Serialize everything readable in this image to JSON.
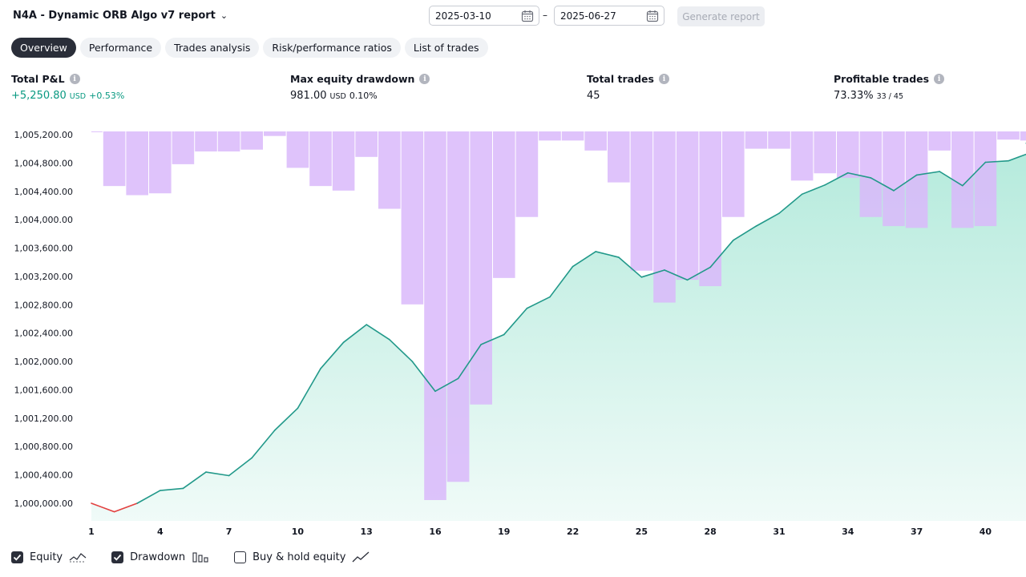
{
  "header": {
    "title": "N4A - Dynamic ORB Algo v7 report",
    "date_from": "2025-03-10",
    "date_to": "2025-06-27",
    "date_separator": "–",
    "generate_label": "Generate report"
  },
  "tabs": [
    {
      "label": "Overview",
      "active": true
    },
    {
      "label": "Performance"
    },
    {
      "label": "Trades analysis"
    },
    {
      "label": "Risk/performance ratios"
    },
    {
      "label": "List of trades"
    }
  ],
  "stats": {
    "pnl": {
      "label": "Total P&L",
      "value": "+5,250.80",
      "unit": "USD",
      "pct": "+0.53%"
    },
    "drawdown": {
      "label": "Max equity drawdown",
      "value": "981.00",
      "unit": "USD",
      "pct": "0.10%"
    },
    "trades": {
      "label": "Total trades",
      "value": "45"
    },
    "profitable": {
      "label": "Profitable trades",
      "value": "73.33%",
      "sub": "33 / 45"
    }
  },
  "colors": {
    "equity_line": "#22998a",
    "equity_fill": "#9be3d0",
    "equity_negative": "#e2403f",
    "drawdown_bar": "#d9b8fa",
    "drawdown_overlap": "#b5b4ec",
    "accent": "#089981"
  },
  "chart_data": {
    "type": "line",
    "y_tick_labels": [
      "1,005,200.00",
      "1,004,800.00",
      "1,004,400.00",
      "1,004,000.00",
      "1,003,600.00",
      "1,003,200.00",
      "1,002,800.00",
      "1,002,400.00",
      "1,002,000.00",
      "1,001,600.00",
      "1,001,200.00",
      "1,000,800.00",
      "1,000,400.00",
      "1,000,000.00"
    ],
    "ylim": [
      999870,
      1005250
    ],
    "x_tick_labels": [
      "1",
      "4",
      "7",
      "10",
      "13",
      "16",
      "19",
      "22",
      "25",
      "28",
      "31",
      "34",
      "37",
      "40"
    ],
    "x_ticks": [
      1,
      4,
      7,
      10,
      13,
      16,
      19,
      22,
      25,
      28,
      31,
      34,
      37,
      40
    ],
    "xlim": [
      1,
      46
    ],
    "grid": false,
    "series": [
      {
        "name": "Equity",
        "x": [
          1,
          2,
          3,
          4,
          5,
          6,
          7,
          8,
          9,
          10,
          11,
          12,
          13,
          14,
          15,
          16,
          17,
          18,
          19,
          20,
          21,
          22,
          23,
          24,
          25,
          26,
          27,
          28,
          29,
          30,
          31,
          32,
          33,
          34,
          35,
          36,
          37,
          38,
          39,
          40,
          41,
          42
        ],
        "values": [
          1000000,
          999880,
          1000000,
          1000180,
          1000210,
          1000440,
          1000390,
          1000640,
          1001030,
          1001340,
          1001900,
          1002270,
          1002520,
          1002310,
          1002000,
          1001580,
          1001760,
          1002240,
          1002380,
          1002750,
          1002910,
          1003340,
          1003550,
          1003470,
          1003190,
          1003290,
          1003150,
          1003330,
          1003710,
          1003910,
          1004090,
          1004360,
          1004490,
          1004660,
          1004590,
          1004410,
          1004630,
          1004680,
          1004480,
          1004810,
          1004830,
          1004950
        ]
      },
      {
        "name": "Drawdown",
        "type": "bar",
        "x": [
          1,
          2,
          3,
          4,
          5,
          6,
          7,
          8,
          9,
          10,
          11,
          12,
          13,
          14,
          15,
          16,
          17,
          18,
          19,
          20,
          21,
          22,
          23,
          24,
          25,
          26,
          27,
          28,
          29,
          30,
          31,
          32,
          33,
          34,
          35,
          36,
          37,
          38,
          39,
          40,
          41,
          42
        ],
        "values": [
          0,
          60,
          70,
          68,
          36,
          22,
          22,
          20,
          5,
          40,
          60,
          65,
          28,
          85,
          190,
          405,
          385,
          300,
          161,
          94,
          10,
          10,
          21,
          56,
          153,
          188,
          163,
          170,
          94,
          19,
          19,
          54,
          46,
          51,
          94,
          104,
          106,
          21,
          106,
          104,
          9,
          10
        ]
      }
    ]
  },
  "legend": [
    {
      "label": "Equity",
      "checked": true,
      "icon": "equity-line-icon"
    },
    {
      "label": "Drawdown",
      "checked": true,
      "icon": "drawdown-bars-icon"
    },
    {
      "label": "Buy & hold equity",
      "checked": false,
      "icon": "buy-hold-line-icon"
    }
  ]
}
